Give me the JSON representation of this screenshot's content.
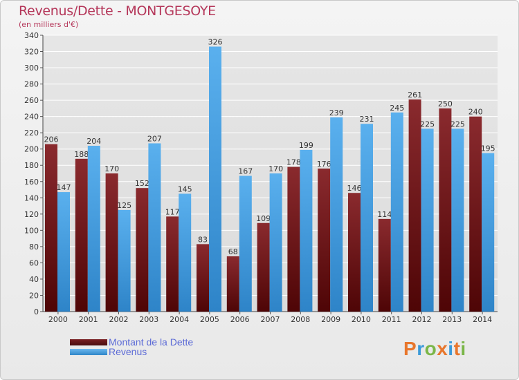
{
  "title": "Revenus/Dette - MONTGESOYE",
  "subtitle": "(en milliers d'€)",
  "legend": {
    "debt_label": "Montant de la Dette",
    "revenue_label": "Revenus"
  },
  "logo": {
    "text": "Proxiti",
    "letters": [
      "P",
      "r",
      "o",
      "x",
      "i",
      "t",
      "i"
    ],
    "colors": [
      "#e8762c",
      "#3a9ad9",
      "#7ab648",
      "#e8762c",
      "#3a9ad9",
      "#e8762c",
      "#7ab648"
    ]
  },
  "colors": {
    "debt": "#7a1f22",
    "revenue": "#4da3e3",
    "grid": "#ffffff",
    "axis_text": "#333333"
  },
  "chart_data": {
    "type": "bar",
    "title": "Revenus/Dette - MONTGESOYE",
    "ylabel": "(en milliers d'€)",
    "categories": [
      "2000",
      "2001",
      "2002",
      "2003",
      "2004",
      "2005",
      "2006",
      "2007",
      "2008",
      "2009",
      "2010",
      "2011",
      "2012",
      "2013",
      "2014"
    ],
    "series": [
      {
        "name": "Montant de la Dette",
        "values": [
          206,
          188,
          170,
          152,
          117,
          83,
          68,
          109,
          178,
          176,
          146,
          114,
          261,
          250,
          240
        ]
      },
      {
        "name": "Revenus",
        "values": [
          147,
          204,
          125,
          207,
          145,
          326,
          167,
          170,
          199,
          239,
          231,
          245,
          225,
          225,
          195
        ]
      }
    ],
    "ylim": [
      0,
      340
    ],
    "yticks": [
      0,
      20,
      40,
      60,
      80,
      100,
      120,
      140,
      160,
      180,
      200,
      220,
      240,
      260,
      280,
      300,
      320,
      340
    ],
    "grid": true,
    "legend_position": "bottom-left"
  }
}
